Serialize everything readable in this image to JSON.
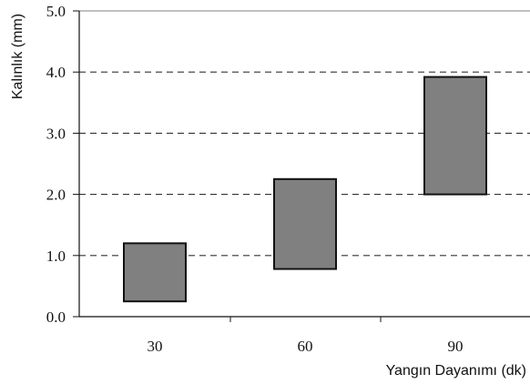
{
  "chart_data": {
    "type": "bar",
    "subtype": "floating-range",
    "title": "",
    "xlabel": "Yangın Dayanımı (dk)",
    "ylabel": "Kalınlık (mm)",
    "categories": [
      "30",
      "60",
      "90"
    ],
    "series": [
      {
        "ranges": [
          [
            0.25,
            1.2
          ],
          [
            0.78,
            2.25
          ],
          [
            2.0,
            3.92
          ]
        ]
      }
    ],
    "ylim": [
      0.0,
      5.0
    ],
    "yticks": [
      "0.0",
      "1.0",
      "2.0",
      "3.0",
      "4.0",
      "5.0"
    ],
    "grid": "horizontal-dashed",
    "legend": "none",
    "colors": {
      "bar_fill": "#808080",
      "bar_stroke": "#111111",
      "grid": "#333333",
      "axis": "#111111"
    }
  }
}
